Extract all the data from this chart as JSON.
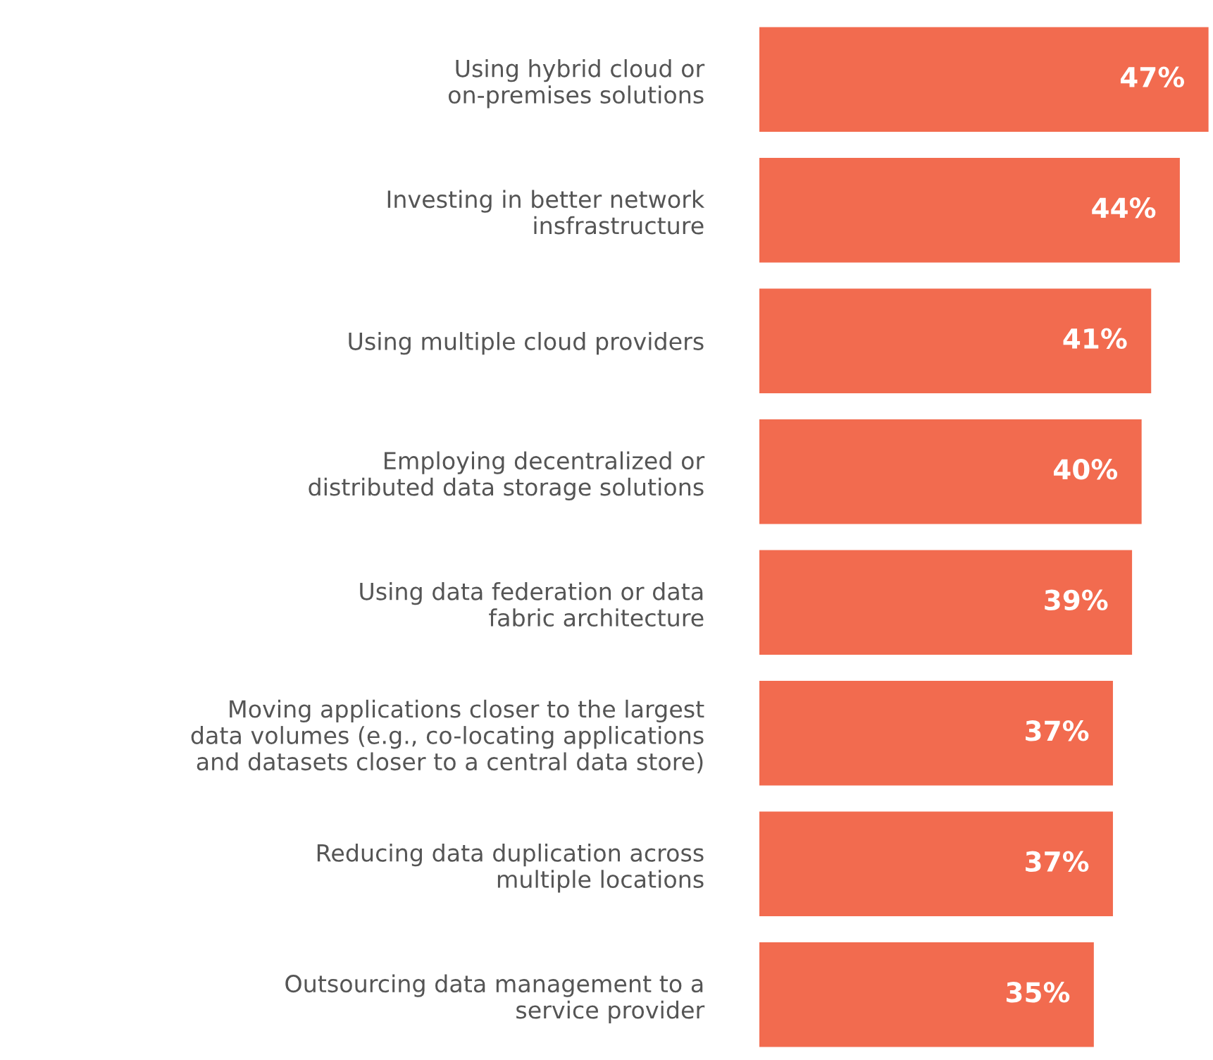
{
  "chart_data": {
    "type": "bar",
    "orientation": "horizontal",
    "color": "#f26b4f",
    "categories": [
      "Using hybrid cloud or\non-premises solutions",
      "Investing in better network\ninsfrastructure",
      "Using multiple cloud providers",
      "Employing decentralized or\ndistributed data storage solutions",
      "Using data federation or data\nfabric architecture",
      "Moving applications closer to the largest\ndata volumes (e.g., co-locating applications\nand datasets closer to a central data store)",
      "Reducing data duplication across\nmultiple locations",
      "Outsourcing data management to a\nservice provider"
    ],
    "values": [
      47,
      44,
      41,
      40,
      39,
      37,
      37,
      35
    ],
    "value_labels": [
      "47%",
      "44%",
      "41%",
      "40%",
      "39%",
      "37%",
      "37%",
      "35%"
    ]
  }
}
